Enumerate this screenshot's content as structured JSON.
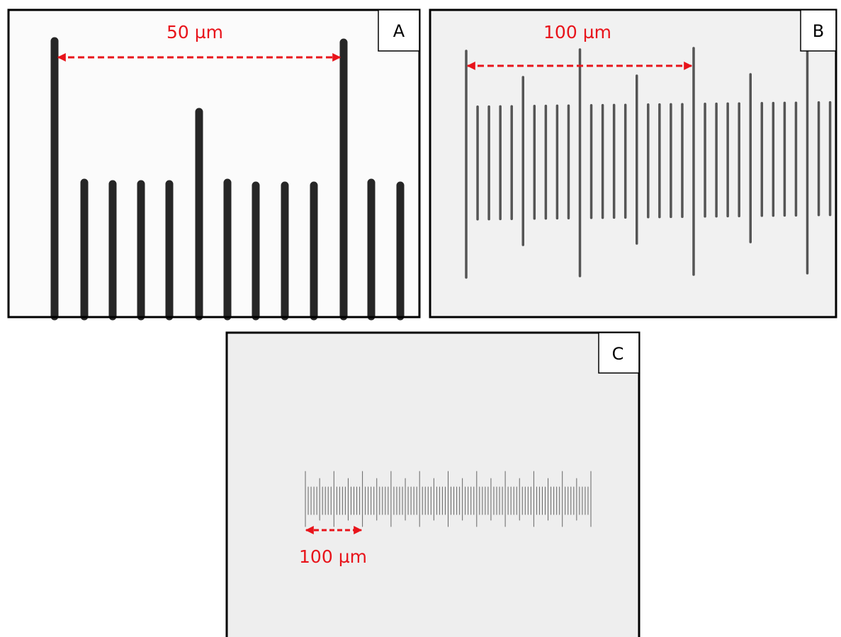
{
  "panels": [
    {
      "label": "A",
      "scale_label": "50 µm"
    },
    {
      "label": "B",
      "scale_label": "100 µm"
    },
    {
      "label": "C",
      "scale_label": "100 µm"
    }
  ]
}
